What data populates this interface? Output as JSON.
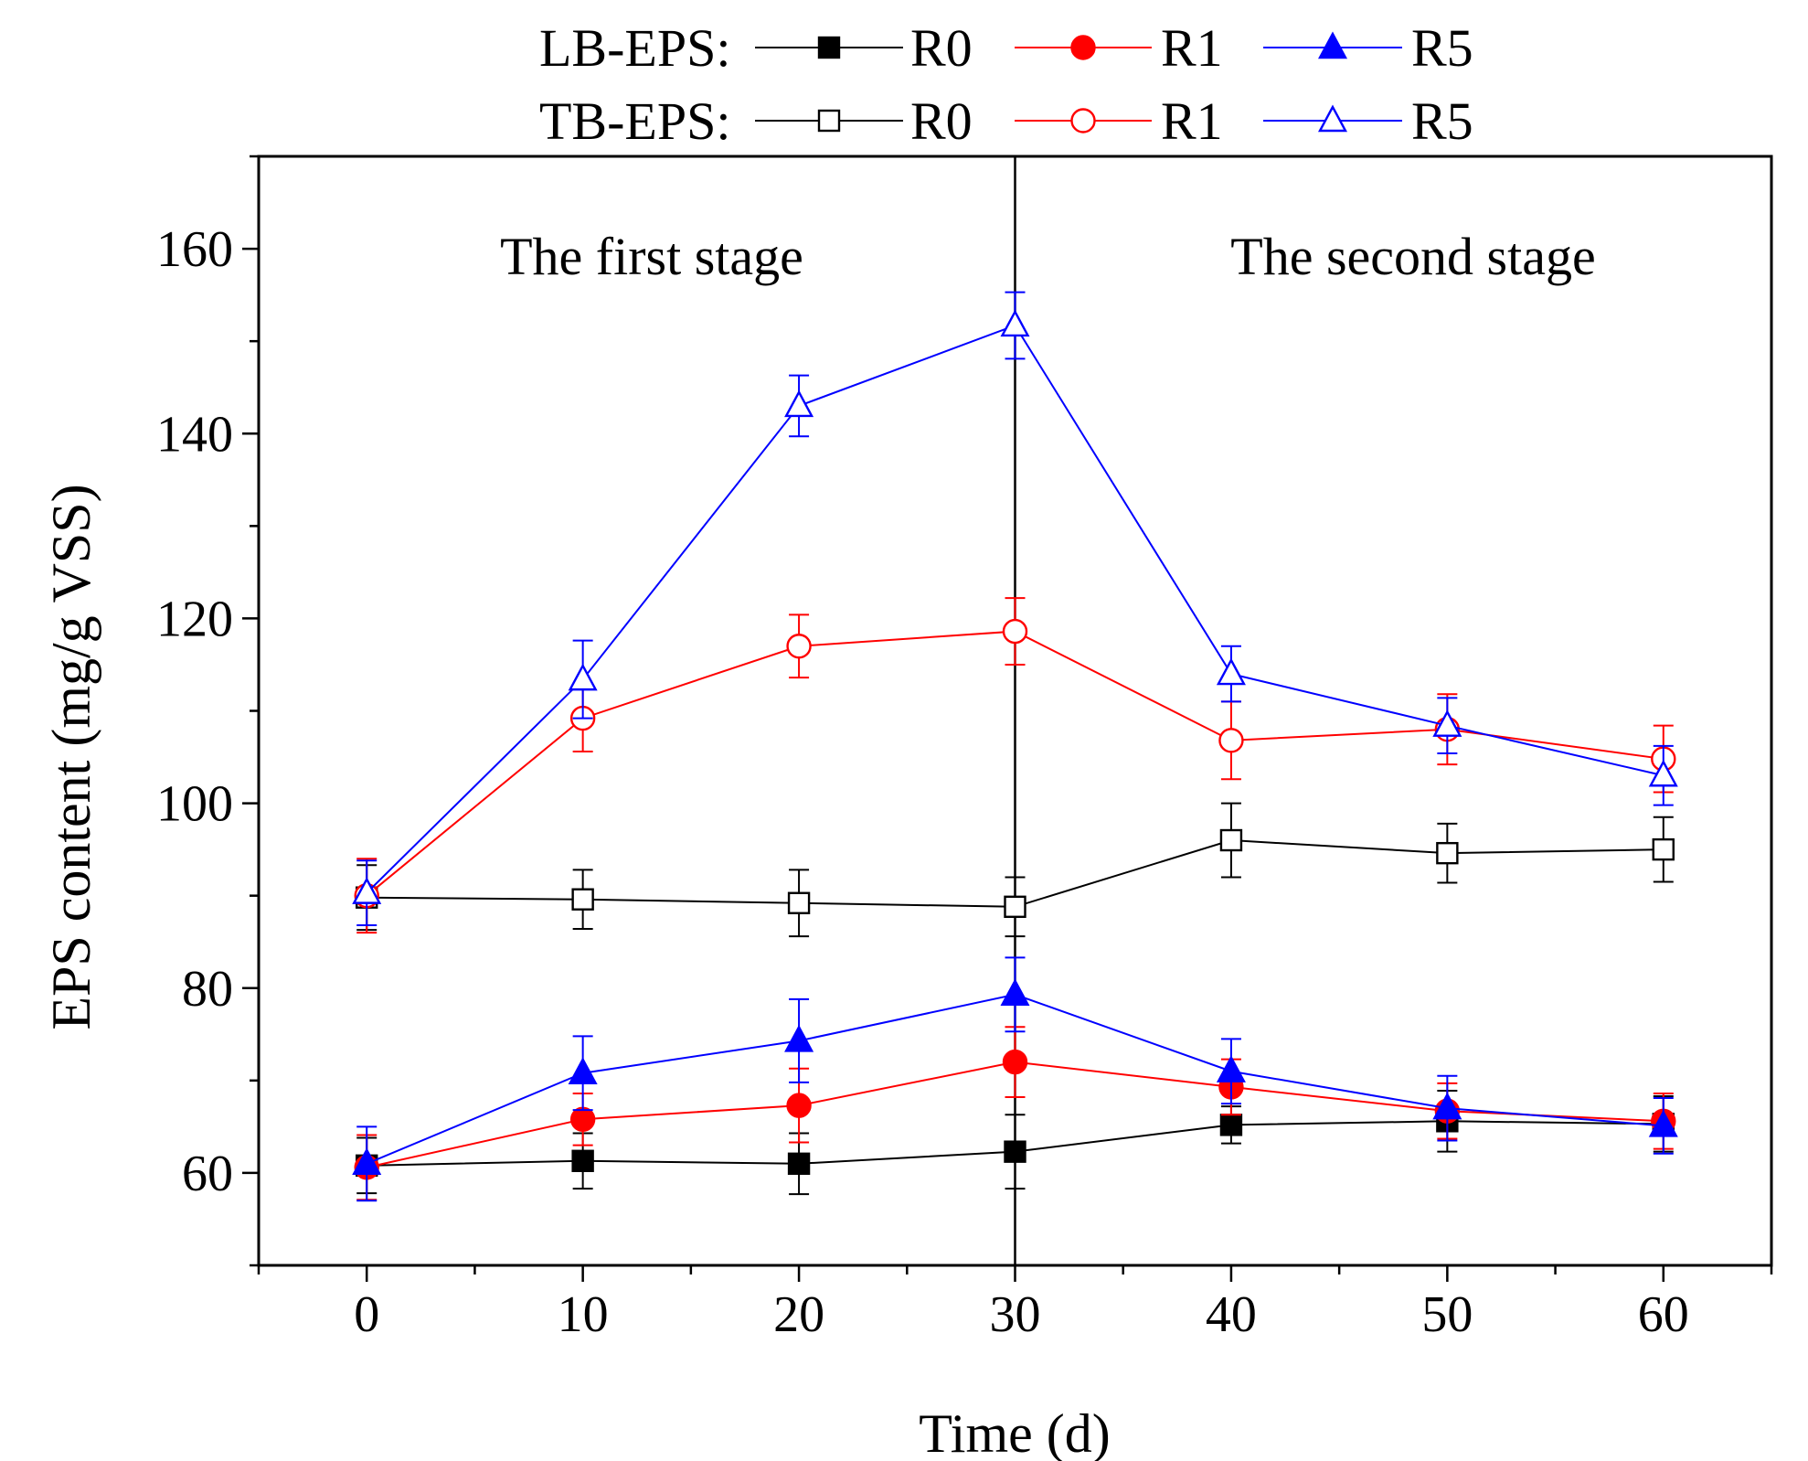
{
  "chart_data": {
    "type": "line",
    "title": "",
    "xlabel": "Time (d)",
    "ylabel": "EPS content (mg/g VSS)",
    "x": [
      0,
      10,
      20,
      30,
      40,
      50,
      60
    ],
    "xlim": [
      -5,
      65
    ],
    "ylim": [
      50,
      170
    ],
    "xticks": [
      0,
      10,
      20,
      30,
      40,
      50,
      60
    ],
    "yticks": [
      60,
      80,
      100,
      120,
      140,
      160
    ],
    "stage_divider_x": 30,
    "annotations": {
      "first_stage": "The first stage",
      "second_stage": "The second stage"
    },
    "legend": {
      "placement": "top-center, above plot",
      "group_labels": [
        "LB-EPS:",
        "TB-EPS:"
      ]
    },
    "series": [
      {
        "group": "LB-EPS",
        "name": "R0",
        "color": "#000000",
        "marker": "square",
        "filled": true,
        "values": [
          60.8,
          61.3,
          61.0,
          62.3,
          65.2,
          65.6,
          65.3
        ],
        "errors": [
          3.0,
          3.0,
          3.3,
          4.0,
          2.0,
          3.3,
          3.0
        ]
      },
      {
        "group": "LB-EPS",
        "name": "R1",
        "color": "#ff0000",
        "marker": "circle",
        "filled": true,
        "values": [
          60.6,
          65.8,
          67.3,
          72.0,
          69.3,
          66.7,
          65.6
        ],
        "errors": [
          3.5,
          2.8,
          4.0,
          3.8,
          3.0,
          3.0,
          3.0
        ]
      },
      {
        "group": "LB-EPS",
        "name": "R5",
        "color": "#0000ff",
        "marker": "triangle",
        "filled": true,
        "values": [
          61.0,
          70.8,
          74.3,
          79.3,
          71.0,
          67.0,
          65.1
        ],
        "errors": [
          4.0,
          4.0,
          4.5,
          4.0,
          3.5,
          3.5,
          3.0
        ]
      },
      {
        "group": "TB-EPS",
        "name": "R0",
        "color": "#000000",
        "marker": "square",
        "filled": false,
        "values": [
          89.8,
          89.6,
          89.2,
          88.8,
          96.0,
          94.6,
          95.0
        ],
        "errors": [
          3.5,
          3.2,
          3.6,
          3.2,
          4.0,
          3.2,
          3.5
        ]
      },
      {
        "group": "TB-EPS",
        "name": "R1",
        "color": "#ff0000",
        "marker": "circle",
        "filled": false,
        "values": [
          90.0,
          109.2,
          117.0,
          118.6,
          106.8,
          108.0,
          104.8
        ],
        "errors": [
          4.0,
          3.6,
          3.4,
          3.6,
          4.2,
          3.8,
          3.6
        ]
      },
      {
        "group": "TB-EPS",
        "name": "R5",
        "color": "#0000ff",
        "marker": "triangle",
        "filled": false,
        "values": [
          90.3,
          113.4,
          143.0,
          151.7,
          114.0,
          108.4,
          103.0
        ],
        "errors": [
          3.5,
          4.2,
          3.3,
          3.6,
          3.0,
          3.0,
          3.2
        ]
      }
    ]
  }
}
